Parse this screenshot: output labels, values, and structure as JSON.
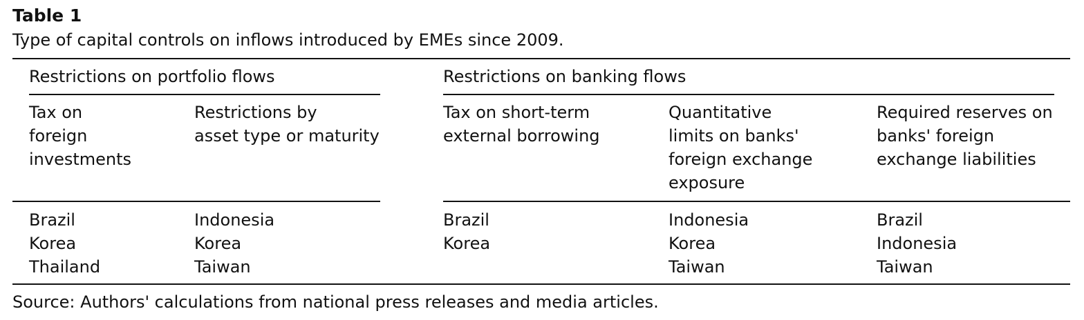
{
  "table": {
    "label": "Table 1",
    "caption": "Type of capital controls on inflows introduced by EMEs since 2009.",
    "groups": [
      {
        "label": "Restrictions on portfolio flows"
      },
      {
        "label": "Restrictions on banking flows"
      }
    ],
    "columns": [
      {
        "header": [
          "Tax on",
          "foreign",
          "investments"
        ],
        "countries": [
          "Brazil",
          "Korea",
          "Thailand"
        ]
      },
      {
        "header": [
          "Restrictions by",
          "asset type or maturity"
        ],
        "countries": [
          "Indonesia",
          "Korea",
          "Taiwan"
        ]
      },
      {
        "header": [
          "Tax on short-term",
          "external borrowing"
        ],
        "countries": [
          "Brazil",
          "Korea"
        ]
      },
      {
        "header": [
          "Quantitative",
          "limits on banks'",
          "foreign exchange",
          "exposure"
        ],
        "countries": [
          "Indonesia",
          "Korea",
          "Taiwan"
        ]
      },
      {
        "header": [
          "Required reserves on",
          "banks' foreign",
          "exchange liabilities"
        ],
        "countries": [
          "Brazil",
          "Indonesia",
          "Taiwan"
        ]
      }
    ],
    "source": "Source: Authors' calculations from national press releases and media articles."
  }
}
